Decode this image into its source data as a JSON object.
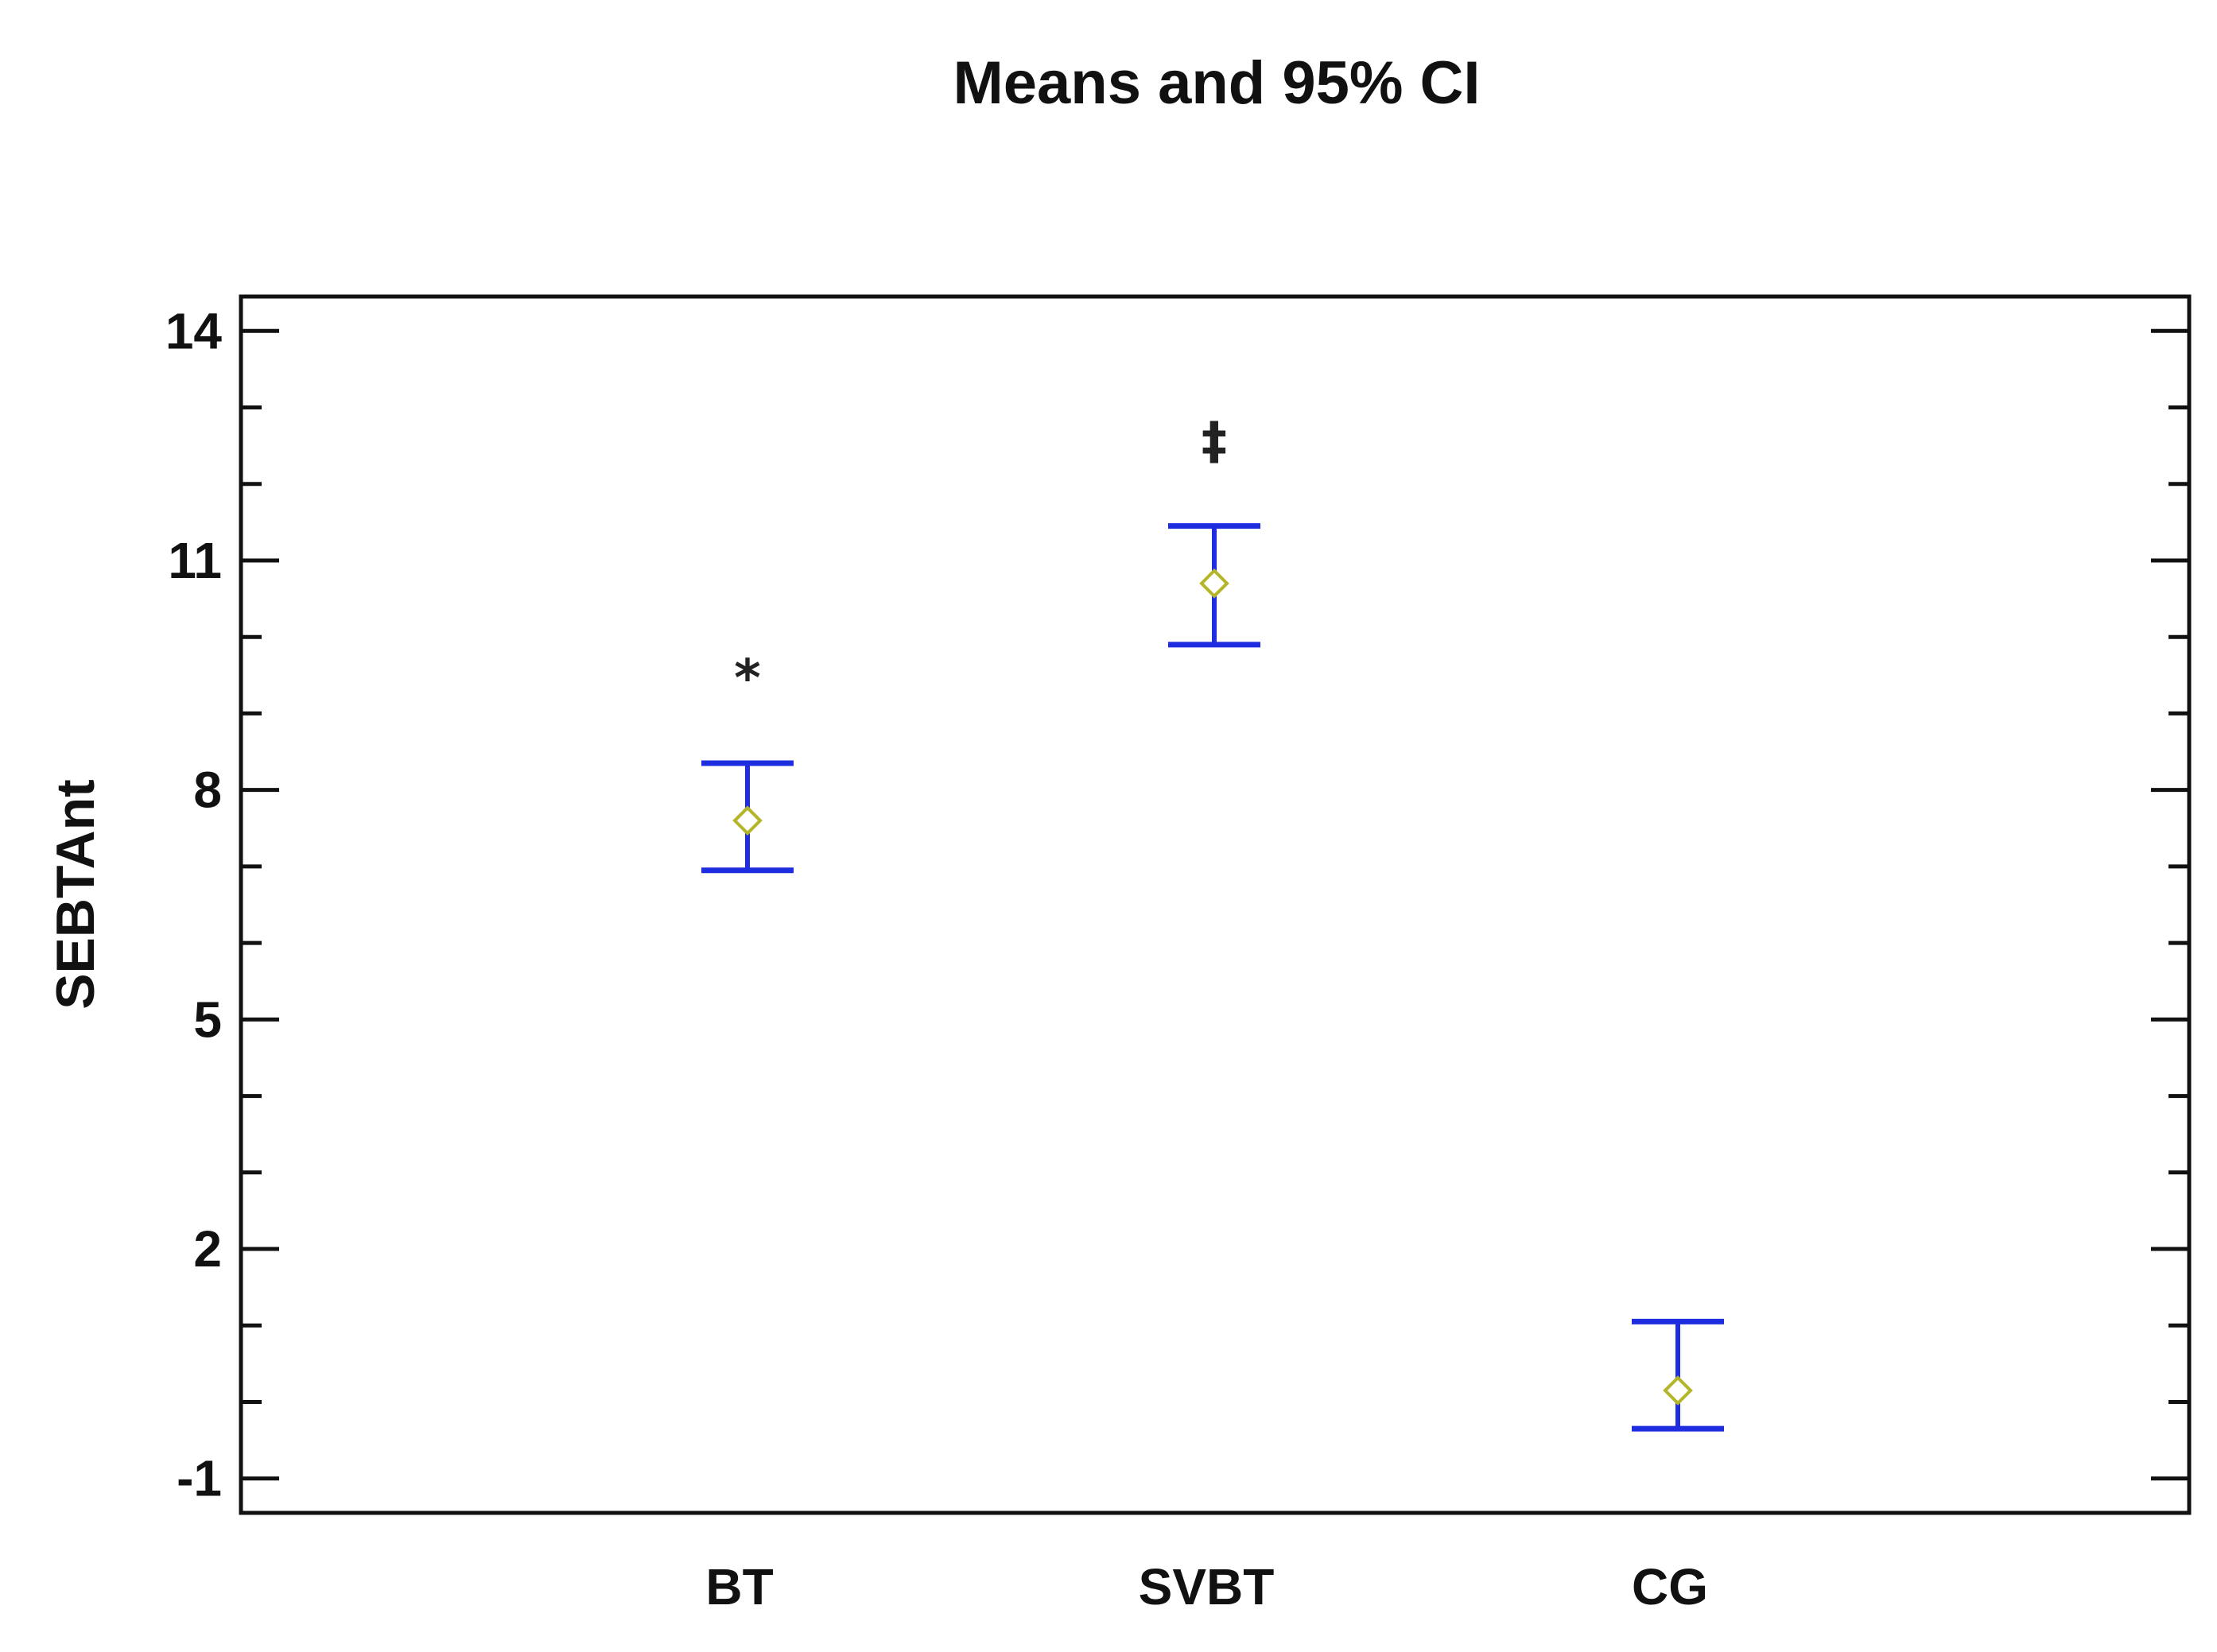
{
  "chart_data": {
    "type": "scatter",
    "title": "Means and 95% CI",
    "xlabel": "",
    "ylabel": "SEBTAnt",
    "categories": [
      "BT",
      "SVBT",
      "CG"
    ],
    "y_ticks": [
      "14",
      "11",
      "8",
      "5",
      "2",
      "-1"
    ],
    "ylim": [
      -1.45,
      14.45
    ],
    "grid": false,
    "series": [
      {
        "values": [
          7.6,
          10.7,
          0.15
        ],
        "ci_upper": [
          8.35,
          11.45,
          1.05
        ],
        "ci_lower": [
          6.95,
          9.9,
          -0.35
        ]
      }
    ],
    "annotations": [
      "*",
      "‡",
      ""
    ],
    "colors": {
      "error_bar": "#1f2de0",
      "mean_marker": "#b5b52a",
      "axis": "#111111"
    }
  }
}
